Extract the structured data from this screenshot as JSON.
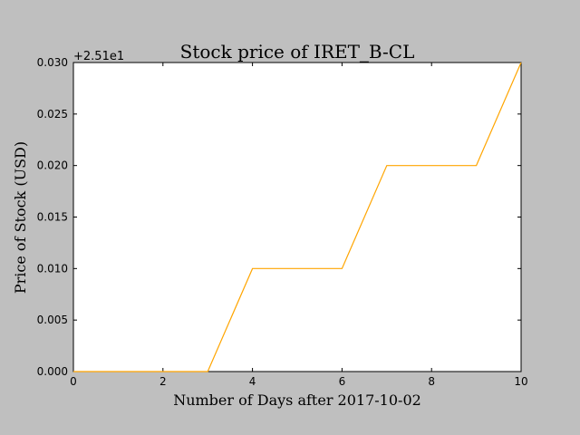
{
  "chart_data": {
    "type": "line",
    "title": "Stock price of IRET_B-CL",
    "xlabel": "Number of Days after 2017-10-02",
    "ylabel": "Price of Stock (USD)",
    "offset_label": "+2.51e1",
    "xlim": [
      0,
      10
    ],
    "ylim": [
      0,
      0.03
    ],
    "x_ticks": [
      0,
      2,
      4,
      6,
      8,
      10
    ],
    "x_tick_labels": [
      "0",
      "2",
      "4",
      "6",
      "8",
      "10"
    ],
    "y_ticks": [
      0,
      0.005,
      0.01,
      0.015,
      0.02,
      0.025,
      0.03
    ],
    "y_tick_labels": [
      "0.000",
      "0.005",
      "0.010",
      "0.015",
      "0.020",
      "0.025",
      "0.030"
    ],
    "grid": false,
    "series": [
      {
        "color": "#ffa500",
        "x": [
          0,
          1,
          2,
          3,
          4,
          5,
          6,
          7,
          8,
          9,
          10
        ],
        "y": [
          0,
          0,
          0,
          0,
          0.01,
          0.01,
          0.01,
          0.02,
          0.02,
          0.02,
          0.03
        ]
      }
    ]
  }
}
